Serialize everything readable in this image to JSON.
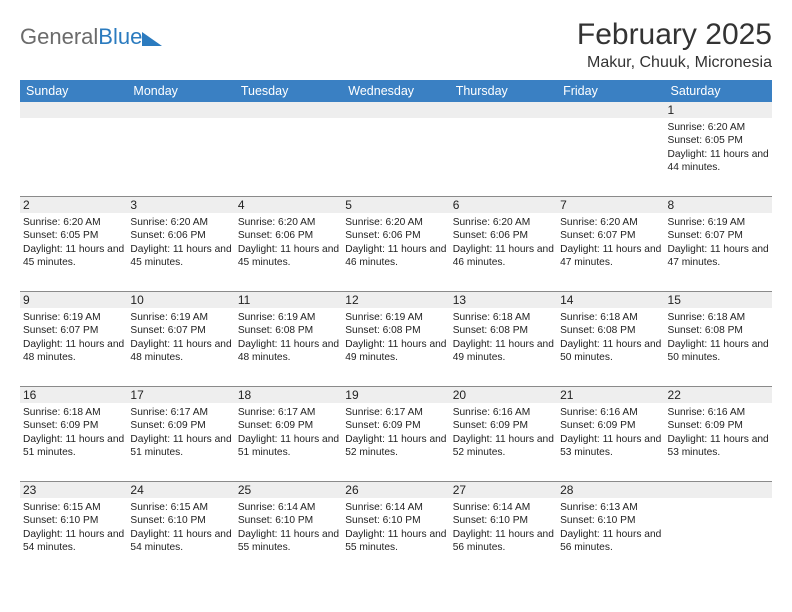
{
  "logo": {
    "word1": "General",
    "word2": "Blue"
  },
  "title": "February 2025",
  "location": "Makur, Chuuk, Micronesia",
  "colors": {
    "header_bg": "#3a80c3",
    "header_text": "#ffffff",
    "shade_bg": "#eeeeee",
    "border": "#8a8a8a",
    "logo_gray": "#6b6b6b",
    "logo_blue": "#2b7bbf"
  },
  "weekdays": [
    "Sunday",
    "Monday",
    "Tuesday",
    "Wednesday",
    "Thursday",
    "Friday",
    "Saturday"
  ],
  "weeks": [
    [
      {
        "n": "",
        "sr": "",
        "ss": "",
        "dl": ""
      },
      {
        "n": "",
        "sr": "",
        "ss": "",
        "dl": ""
      },
      {
        "n": "",
        "sr": "",
        "ss": "",
        "dl": ""
      },
      {
        "n": "",
        "sr": "",
        "ss": "",
        "dl": ""
      },
      {
        "n": "",
        "sr": "",
        "ss": "",
        "dl": ""
      },
      {
        "n": "",
        "sr": "",
        "ss": "",
        "dl": ""
      },
      {
        "n": "1",
        "sr": "Sunrise: 6:20 AM",
        "ss": "Sunset: 6:05 PM",
        "dl": "Daylight: 11 hours and 44 minutes."
      }
    ],
    [
      {
        "n": "2",
        "sr": "Sunrise: 6:20 AM",
        "ss": "Sunset: 6:05 PM",
        "dl": "Daylight: 11 hours and 45 minutes."
      },
      {
        "n": "3",
        "sr": "Sunrise: 6:20 AM",
        "ss": "Sunset: 6:06 PM",
        "dl": "Daylight: 11 hours and 45 minutes."
      },
      {
        "n": "4",
        "sr": "Sunrise: 6:20 AM",
        "ss": "Sunset: 6:06 PM",
        "dl": "Daylight: 11 hours and 45 minutes."
      },
      {
        "n": "5",
        "sr": "Sunrise: 6:20 AM",
        "ss": "Sunset: 6:06 PM",
        "dl": "Daylight: 11 hours and 46 minutes."
      },
      {
        "n": "6",
        "sr": "Sunrise: 6:20 AM",
        "ss": "Sunset: 6:06 PM",
        "dl": "Daylight: 11 hours and 46 minutes."
      },
      {
        "n": "7",
        "sr": "Sunrise: 6:20 AM",
        "ss": "Sunset: 6:07 PM",
        "dl": "Daylight: 11 hours and 47 minutes."
      },
      {
        "n": "8",
        "sr": "Sunrise: 6:19 AM",
        "ss": "Sunset: 6:07 PM",
        "dl": "Daylight: 11 hours and 47 minutes."
      }
    ],
    [
      {
        "n": "9",
        "sr": "Sunrise: 6:19 AM",
        "ss": "Sunset: 6:07 PM",
        "dl": "Daylight: 11 hours and 48 minutes."
      },
      {
        "n": "10",
        "sr": "Sunrise: 6:19 AM",
        "ss": "Sunset: 6:07 PM",
        "dl": "Daylight: 11 hours and 48 minutes."
      },
      {
        "n": "11",
        "sr": "Sunrise: 6:19 AM",
        "ss": "Sunset: 6:08 PM",
        "dl": "Daylight: 11 hours and 48 minutes."
      },
      {
        "n": "12",
        "sr": "Sunrise: 6:19 AM",
        "ss": "Sunset: 6:08 PM",
        "dl": "Daylight: 11 hours and 49 minutes."
      },
      {
        "n": "13",
        "sr": "Sunrise: 6:18 AM",
        "ss": "Sunset: 6:08 PM",
        "dl": "Daylight: 11 hours and 49 minutes."
      },
      {
        "n": "14",
        "sr": "Sunrise: 6:18 AM",
        "ss": "Sunset: 6:08 PM",
        "dl": "Daylight: 11 hours and 50 minutes."
      },
      {
        "n": "15",
        "sr": "Sunrise: 6:18 AM",
        "ss": "Sunset: 6:08 PM",
        "dl": "Daylight: 11 hours and 50 minutes."
      }
    ],
    [
      {
        "n": "16",
        "sr": "Sunrise: 6:18 AM",
        "ss": "Sunset: 6:09 PM",
        "dl": "Daylight: 11 hours and 51 minutes."
      },
      {
        "n": "17",
        "sr": "Sunrise: 6:17 AM",
        "ss": "Sunset: 6:09 PM",
        "dl": "Daylight: 11 hours and 51 minutes."
      },
      {
        "n": "18",
        "sr": "Sunrise: 6:17 AM",
        "ss": "Sunset: 6:09 PM",
        "dl": "Daylight: 11 hours and 51 minutes."
      },
      {
        "n": "19",
        "sr": "Sunrise: 6:17 AM",
        "ss": "Sunset: 6:09 PM",
        "dl": "Daylight: 11 hours and 52 minutes."
      },
      {
        "n": "20",
        "sr": "Sunrise: 6:16 AM",
        "ss": "Sunset: 6:09 PM",
        "dl": "Daylight: 11 hours and 52 minutes."
      },
      {
        "n": "21",
        "sr": "Sunrise: 6:16 AM",
        "ss": "Sunset: 6:09 PM",
        "dl": "Daylight: 11 hours and 53 minutes."
      },
      {
        "n": "22",
        "sr": "Sunrise: 6:16 AM",
        "ss": "Sunset: 6:09 PM",
        "dl": "Daylight: 11 hours and 53 minutes."
      }
    ],
    [
      {
        "n": "23",
        "sr": "Sunrise: 6:15 AM",
        "ss": "Sunset: 6:10 PM",
        "dl": "Daylight: 11 hours and 54 minutes."
      },
      {
        "n": "24",
        "sr": "Sunrise: 6:15 AM",
        "ss": "Sunset: 6:10 PM",
        "dl": "Daylight: 11 hours and 54 minutes."
      },
      {
        "n": "25",
        "sr": "Sunrise: 6:14 AM",
        "ss": "Sunset: 6:10 PM",
        "dl": "Daylight: 11 hours and 55 minutes."
      },
      {
        "n": "26",
        "sr": "Sunrise: 6:14 AM",
        "ss": "Sunset: 6:10 PM",
        "dl": "Daylight: 11 hours and 55 minutes."
      },
      {
        "n": "27",
        "sr": "Sunrise: 6:14 AM",
        "ss": "Sunset: 6:10 PM",
        "dl": "Daylight: 11 hours and 56 minutes."
      },
      {
        "n": "28",
        "sr": "Sunrise: 6:13 AM",
        "ss": "Sunset: 6:10 PM",
        "dl": "Daylight: 11 hours and 56 minutes."
      },
      {
        "n": "",
        "sr": "",
        "ss": "",
        "dl": ""
      }
    ]
  ]
}
